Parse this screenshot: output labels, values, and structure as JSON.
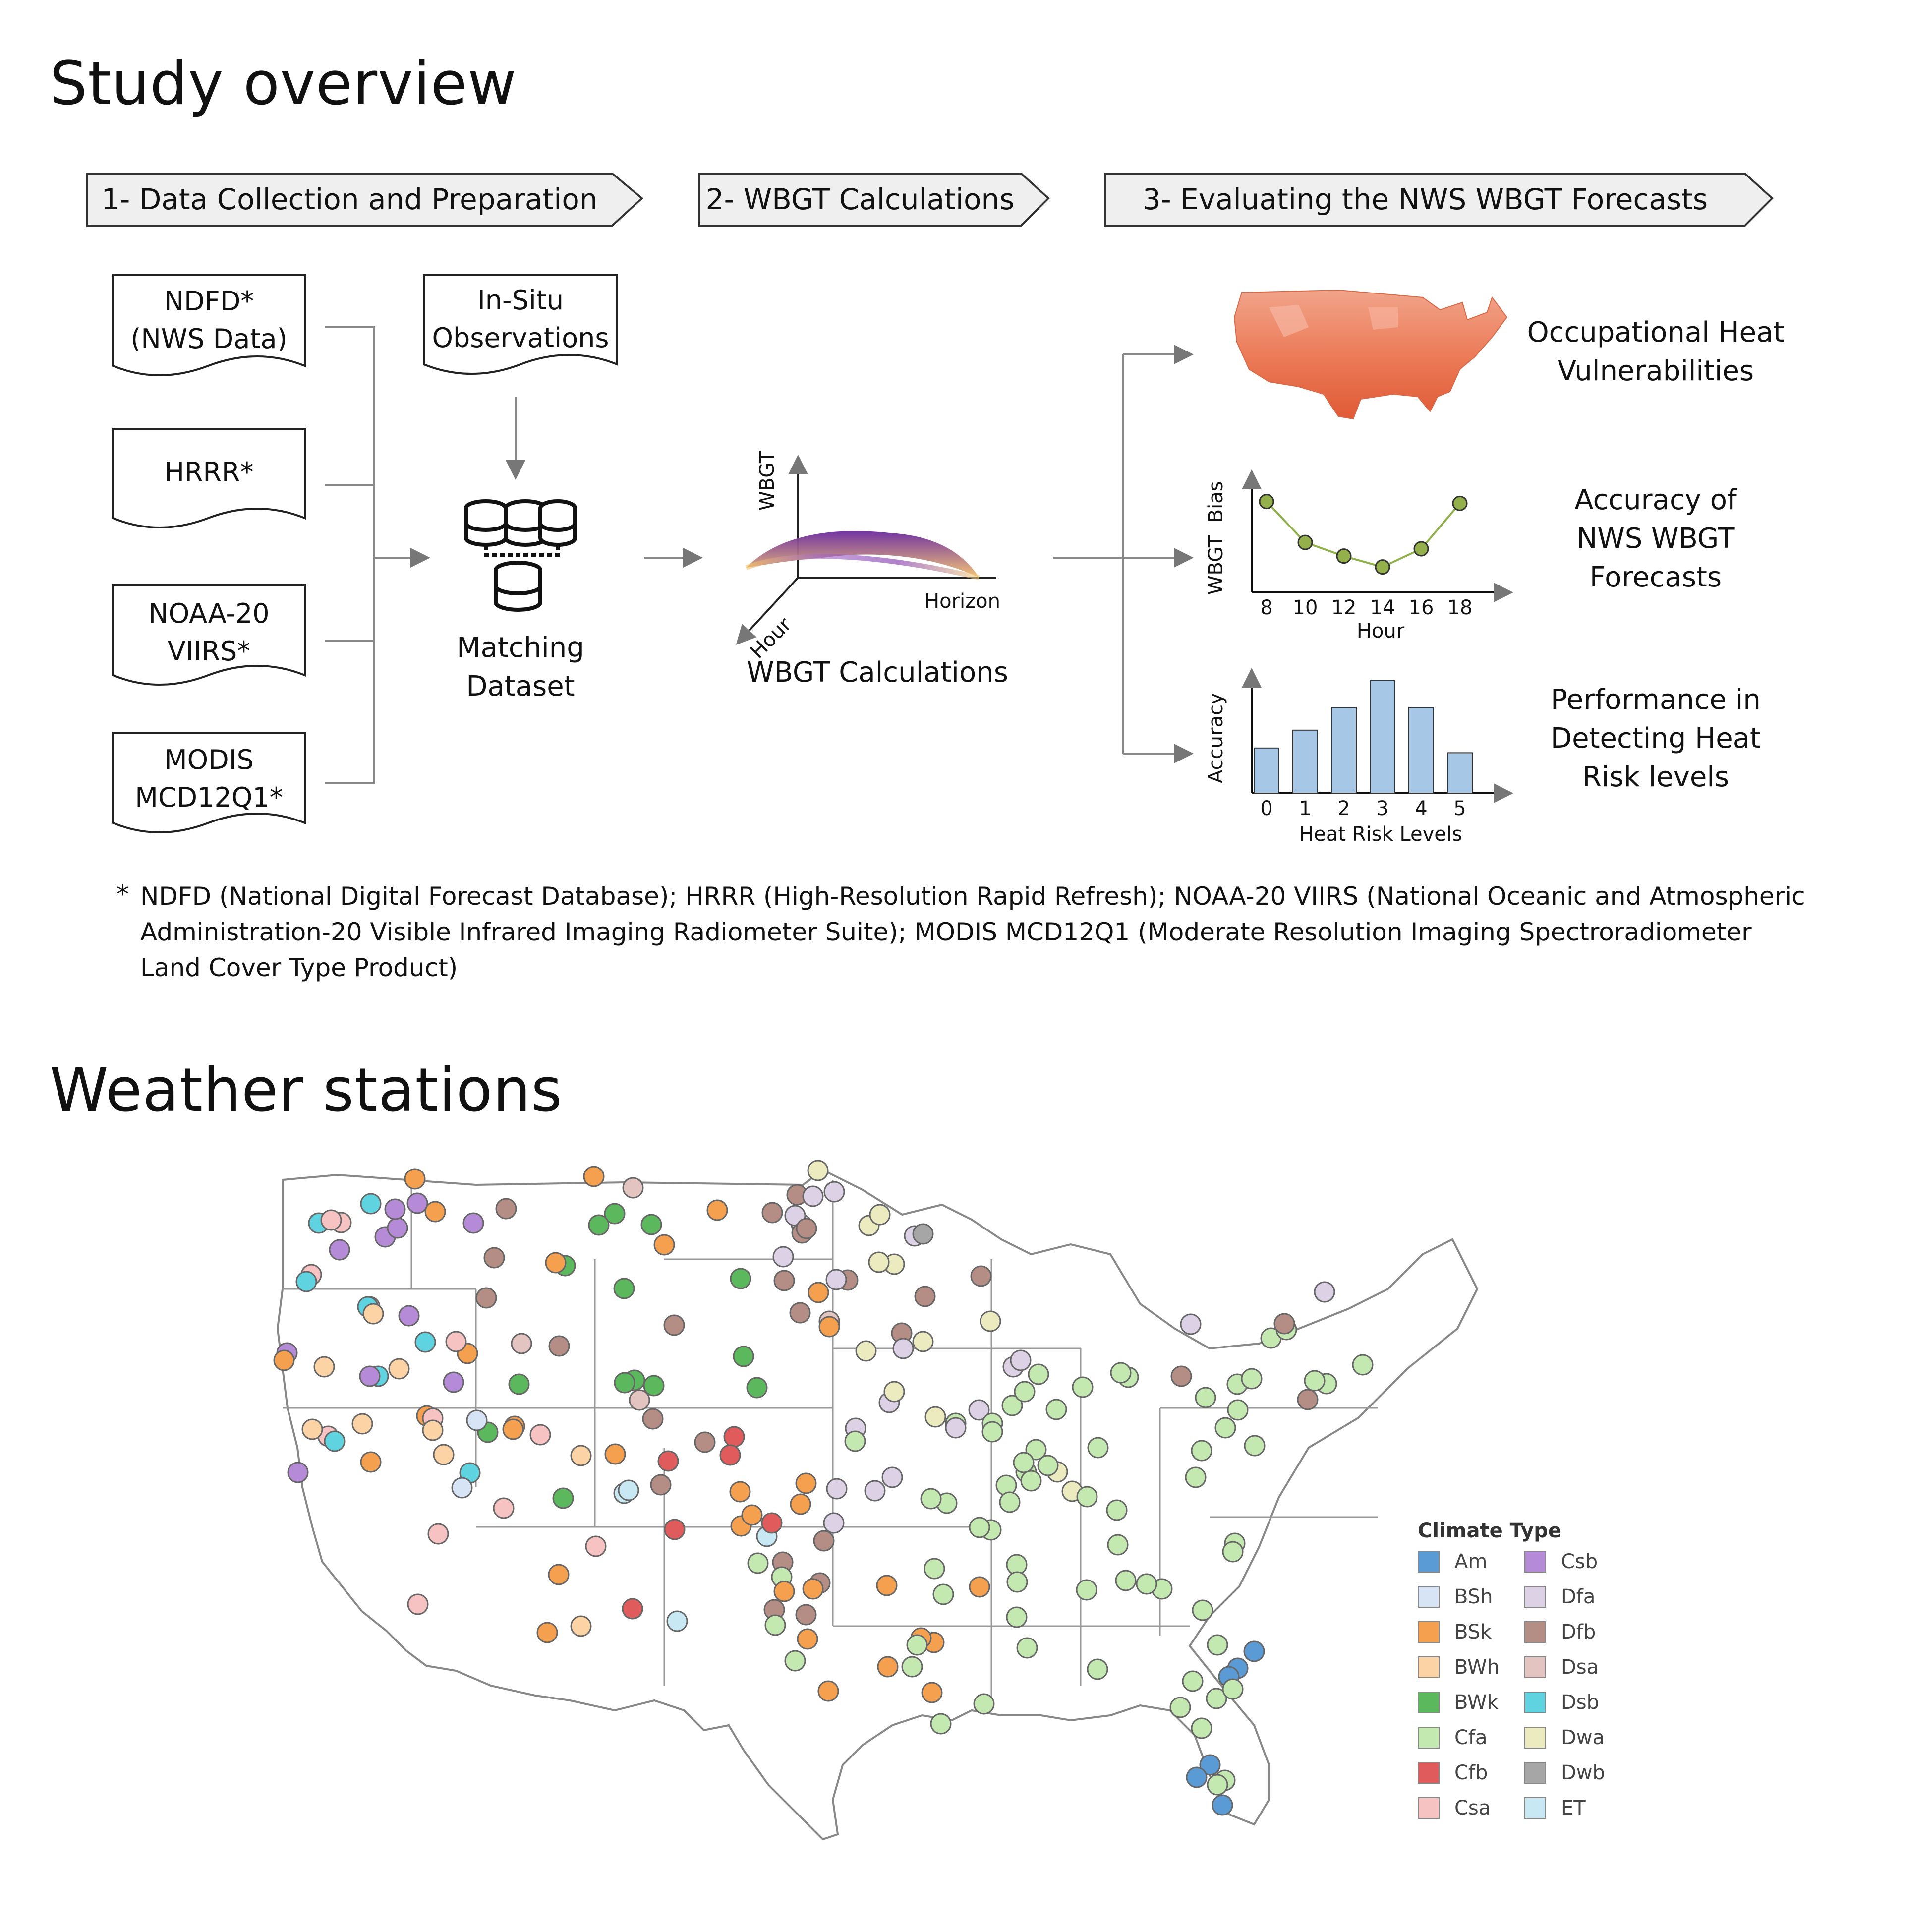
{
  "sections": {
    "overview_title": "Study overview",
    "stations_title": "Weather stations"
  },
  "stages": [
    {
      "label": "1- Data Collection and Preparation"
    },
    {
      "label": "2- WBGT Calculations"
    },
    {
      "label": "3- Evaluating the NWS WBGT Forecasts"
    }
  ],
  "sources": [
    {
      "line1": "NDFD*",
      "line2": "(NWS Data)"
    },
    {
      "line1": "HRRR*",
      "line2": ""
    },
    {
      "line1": "NOAA-20",
      "line2": "VIIRS*"
    },
    {
      "line1": "MODIS",
      "line2": "MCD12Q1*"
    }
  ],
  "in_situ": {
    "line1": "In-Situ",
    "line2": "Observations"
  },
  "matching": {
    "line1": "Matching",
    "line2": "Dataset"
  },
  "wbgt_calc": {
    "caption": "WBGT Calculations",
    "axis_y": "WBGT",
    "axis_x": "Horizon",
    "axis_z": "Hour"
  },
  "outputs": [
    {
      "line1": "Occupational Heat",
      "line2": "Vulnerabilities",
      "line3": ""
    },
    {
      "line1": "Accuracy of",
      "line2": "NWS WBGT",
      "line3": "Forecasts"
    },
    {
      "line1": "Performance in",
      "line2": "Detecting Heat",
      "line3": "Risk levels"
    }
  ],
  "chart_data": [
    {
      "type": "line",
      "ylabel": "WBGT  Bias",
      "xlabel": "Hour",
      "x": [
        8,
        10,
        12,
        14,
        16,
        18
      ],
      "values": [
        1.0,
        0.55,
        0.4,
        0.28,
        0.48,
        0.98
      ],
      "ylim": [
        0,
        1.2
      ],
      "color": "#8fb04a"
    },
    {
      "type": "bar",
      "ylabel": "Accuracy",
      "xlabel": "Heat Risk Levels",
      "categories": [
        "0",
        "1",
        "2",
        "3",
        "4",
        "5"
      ],
      "values": [
        0.38,
        0.53,
        0.72,
        0.95,
        0.72,
        0.34
      ],
      "ylim": [
        0,
        1.5
      ],
      "color": "#a7c7e7"
    }
  ],
  "footnote": {
    "marker": "*",
    "line1": "NDFD (National Digital Forecast Database); HRRR (High-Resolution Rapid Refresh); NOAA-20 VIIRS (National Oceanic and Atmospheric",
    "line2": "Administration-20 Visible Infrared Imaging Radiometer Suite); MODIS MCD12Q1 (Moderate Resolution Imaging Spectroradiometer",
    "line3": "Land Cover Type Product)"
  },
  "legend": {
    "title": "Climate Type",
    "items": [
      {
        "code": "Am",
        "color": "#5b9bd5"
      },
      {
        "code": "BSh",
        "color": "#d6e4f5"
      },
      {
        "code": "BSk",
        "color": "#f5a04f"
      },
      {
        "code": "BWh",
        "color": "#fbd3a5"
      },
      {
        "code": "BWk",
        "color": "#5cb85c"
      },
      {
        "code": "Cfa",
        "color": "#c3e8b0"
      },
      {
        "code": "Cfb",
        "color": "#e05c5c"
      },
      {
        "code": "Csa",
        "color": "#f7c2c2"
      },
      {
        "code": "Csb",
        "color": "#b58ad6"
      },
      {
        "code": "Dfa",
        "color": "#ddd1e6"
      },
      {
        "code": "Dfb",
        "color": "#b48e84"
      },
      {
        "code": "Dsa",
        "color": "#e3c4c0"
      },
      {
        "code": "Dsb",
        "color": "#5fd3e0"
      },
      {
        "code": "Dwa",
        "color": "#ecebc0"
      },
      {
        "code": "Dwb",
        "color": "#a6a6a6"
      },
      {
        "code": "ET",
        "color": "#c8e8f4"
      }
    ]
  }
}
